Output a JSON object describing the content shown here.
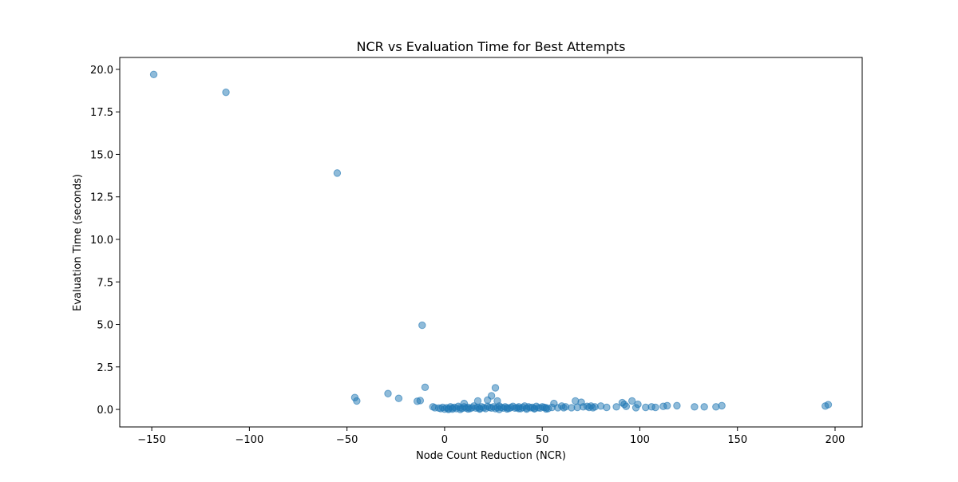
{
  "chart_data": {
    "type": "scatter",
    "title": "NCR vs Evaluation Time for Best Attempts",
    "x_label": "Node Count Reduction (NCR)",
    "y_label": "Evaluation Time (seconds)",
    "color": "#1f77b4",
    "grid": false,
    "xlim": [
      -166.4,
      213.9
    ],
    "ylim": [
      -1.03,
      20.7
    ],
    "xticks": [
      {
        "value": -150,
        "label": "−150"
      },
      {
        "value": -100,
        "label": "−100"
      },
      {
        "value": -50,
        "label": "−50"
      },
      0,
      50,
      100,
      150,
      200
    ],
    "yticks": [
      {
        "value": 0,
        "label": "0.0"
      },
      2.5,
      {
        "value": 5,
        "label": "5.0"
      },
      7.5,
      {
        "value": 10,
        "label": "10.0"
      },
      12.5,
      {
        "value": 15,
        "label": "15.0"
      },
      17.5,
      {
        "value": 20,
        "label": "20.0"
      }
    ],
    "x": [
      -149,
      -112,
      -55,
      -11.5,
      -10,
      -46,
      -45,
      -29,
      -23.5,
      -14,
      -12.5,
      26,
      24,
      17,
      22,
      10,
      27,
      56,
      67,
      70,
      96,
      91,
      99,
      195,
      196.5,
      142,
      139,
      133,
      128,
      119,
      114,
      112,
      108,
      106,
      103,
      98,
      93,
      88,
      83,
      80,
      77,
      75,
      73,
      71,
      68,
      65,
      62,
      60,
      58,
      55,
      -6,
      -5,
      -3,
      -2,
      -1,
      0,
      1,
      2,
      3,
      4,
      5,
      6,
      7,
      8,
      9,
      10,
      11,
      12,
      13,
      14,
      15,
      16,
      17,
      18,
      19,
      20,
      21,
      22,
      23,
      24,
      25,
      26,
      27,
      28,
      29,
      30,
      31,
      32,
      33,
      34,
      35,
      36,
      37,
      38,
      39,
      40,
      41,
      42,
      43,
      44,
      45,
      46,
      47,
      48,
      49,
      50,
      51,
      52,
      53,
      2,
      4,
      8,
      12,
      18,
      28,
      32,
      38,
      42,
      46,
      52,
      61,
      74,
      76,
      92
    ],
    "y": [
      19.7,
      18.65,
      13.9,
      4.95,
      1.3,
      0.7,
      0.5,
      0.93,
      0.65,
      0.48,
      0.52,
      1.27,
      0.8,
      0.5,
      0.55,
      0.35,
      0.5,
      0.35,
      0.5,
      0.42,
      0.5,
      0.4,
      0.3,
      0.2,
      0.28,
      0.22,
      0.15,
      0.15,
      0.15,
      0.22,
      0.22,
      0.18,
      0.12,
      0.15,
      0.12,
      0.1,
      0.18,
      0.15,
      0.12,
      0.2,
      0.15,
      0.2,
      0.18,
      0.15,
      0.12,
      0.1,
      0.15,
      0.2,
      0.1,
      0.12,
      0.15,
      0.1,
      0.08,
      0.05,
      0.12,
      0.02,
      0.1,
      0.05,
      0.15,
      0.08,
      0.12,
      0.05,
      0.18,
      0.1,
      0.06,
      0.15,
      0.08,
      0.12,
      0.05,
      0.1,
      0.2,
      0.08,
      0.12,
      0.06,
      0.15,
      0.1,
      0.05,
      0.18,
      0.12,
      0.08,
      0.15,
      0.05,
      0.1,
      0.2,
      0.12,
      0.08,
      0.15,
      0.1,
      0.06,
      0.12,
      0.18,
      0.08,
      0.1,
      0.15,
      0.05,
      0.12,
      0.2,
      0.08,
      0.15,
      0.1,
      0.12,
      0.05,
      0.18,
      0.1,
      0.08,
      0.15,
      0.12,
      0.1,
      0.05,
      0.0,
      0.02,
      0.0,
      0.03,
      0.02,
      0.0,
      0.03,
      0.05,
      0.02,
      0.04,
      0.03,
      0.1,
      0.12,
      0.1,
      0.3
    ]
  }
}
